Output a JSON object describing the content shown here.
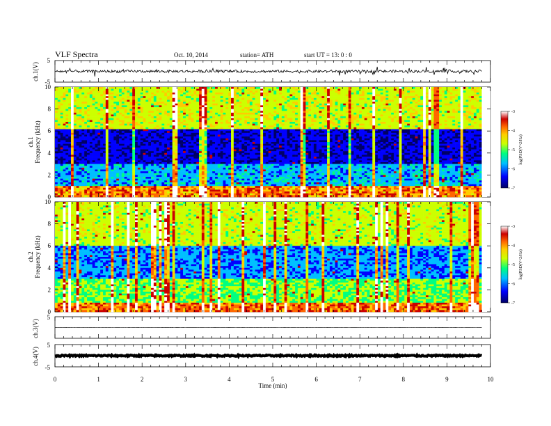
{
  "header": {
    "title": "VLF  Spectra",
    "date": "Oct. 10, 2014",
    "station": "station= ATH",
    "start": "start  UT  =   13: 0  : 0"
  },
  "colors": {
    "colormap": [
      "#000066",
      "#0000ff",
      "#00bfff",
      "#00ff80",
      "#ccff00",
      "#ffcc00",
      "#ff6600",
      "#cc0000",
      "#ffffff"
    ],
    "waveform": "#000000"
  },
  "chart_data": [
    {
      "type": "line",
      "panel": "ch1-waveform",
      "ylabel": "ch.1(V)",
      "ylim": [
        -5,
        5
      ],
      "yticks": [
        "5",
        "-5"
      ],
      "xlim": [
        0,
        10
      ],
      "series": [
        {
          "description_level": 0,
          "amplitude": 0.6
        }
      ]
    },
    {
      "type": "heatmap",
      "panel": "ch1-spectrogram",
      "ylabel_top": "ch.1",
      "ylabel": "Frequency  (kHz)",
      "ylim": [
        0,
        10
      ],
      "yticks": [
        "0",
        "2",
        "4",
        "6",
        "8",
        "10"
      ],
      "xlim": [
        0,
        9.8
      ],
      "colorbar": {
        "label": "log(PSD(V^2/Hz)",
        "range": [
          -7,
          -3
        ],
        "ticks": [
          "-3",
          "-4",
          "-5",
          "-6",
          "-7"
        ]
      }
    },
    {
      "type": "heatmap",
      "panel": "ch2-spectrogram",
      "ylabel_top": "ch.2",
      "ylabel": "Frequency  (kHz)",
      "ylim": [
        0,
        10
      ],
      "yticks": [
        "0",
        "2",
        "4",
        "6",
        "8",
        "10"
      ],
      "xlim": [
        0,
        9.8
      ],
      "colorbar": {
        "label": "log(PSD(V^2/Hz)",
        "range": [
          -7,
          -3
        ],
        "ticks": [
          "-3",
          "-4",
          "-5",
          "-6",
          "-7"
        ]
      }
    },
    {
      "type": "line",
      "panel": "ch3-waveform",
      "ylabel": "ch.3(V)",
      "ylim": [
        -5,
        5
      ],
      "yticks": [
        "5",
        "-5"
      ],
      "series": [
        {
          "level": 0,
          "amplitude": 0.05
        }
      ]
    },
    {
      "type": "line",
      "panel": "ch4-waveform",
      "ylabel": "ch.4(V)",
      "ylim": [
        -5,
        5
      ],
      "yticks": [
        "5",
        "-5"
      ],
      "series": [
        {
          "level": 0,
          "amplitude": 0.3
        }
      ]
    }
  ],
  "xaxis": {
    "label": "Time  (min)",
    "ticks": [
      "0",
      "1",
      "2",
      "3",
      "4",
      "5",
      "6",
      "7",
      "8",
      "9",
      "10"
    ],
    "range": [
      0,
      10
    ]
  }
}
